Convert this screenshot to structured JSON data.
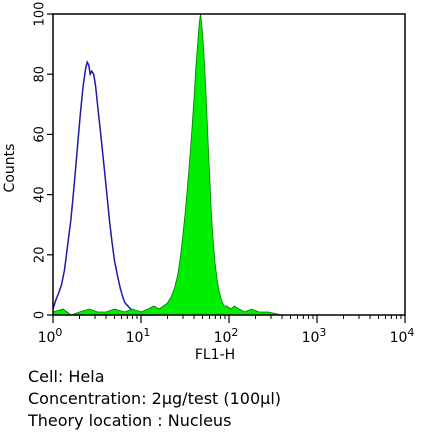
{
  "chart_data": {
    "type": "area",
    "xlabel": "FL1-H",
    "ylabel": "Counts",
    "x_scale": "log",
    "xlim": [
      1,
      10000
    ],
    "ylim": [
      0,
      100
    ],
    "x_ticks": [
      {
        "value": 1,
        "base": "10",
        "exp": "0"
      },
      {
        "value": 10,
        "base": "10",
        "exp": "1"
      },
      {
        "value": 100,
        "base": "10",
        "exp": "2"
      },
      {
        "value": 1000,
        "base": "10",
        "exp": "3"
      },
      {
        "value": 10000,
        "base": "10",
        "exp": "4"
      }
    ],
    "y_ticks": [
      "0",
      "20",
      "40",
      "60",
      "80",
      "100"
    ],
    "series": [
      {
        "style": "outline",
        "color": "#1a1aa8",
        "points": [
          [
            1.0,
            2
          ],
          [
            1.08,
            5
          ],
          [
            1.15,
            7
          ],
          [
            1.25,
            10
          ],
          [
            1.35,
            15
          ],
          [
            1.45,
            22
          ],
          [
            1.6,
            32
          ],
          [
            1.75,
            44
          ],
          [
            1.9,
            56
          ],
          [
            2.05,
            67
          ],
          [
            2.2,
            76
          ],
          [
            2.35,
            82
          ],
          [
            2.45,
            84
          ],
          [
            2.55,
            83
          ],
          [
            2.65,
            80
          ],
          [
            2.75,
            81
          ],
          [
            2.9,
            80
          ],
          [
            3.05,
            76
          ],
          [
            3.2,
            70
          ],
          [
            3.4,
            63
          ],
          [
            3.6,
            56
          ],
          [
            3.85,
            48
          ],
          [
            4.1,
            40
          ],
          [
            4.4,
            31
          ],
          [
            4.7,
            24
          ],
          [
            5.0,
            18
          ],
          [
            5.4,
            13
          ],
          [
            5.8,
            9
          ],
          [
            6.2,
            6
          ],
          [
            6.6,
            4
          ],
          [
            7.1,
            3
          ],
          [
            7.6,
            2
          ],
          [
            8.5,
            1
          ],
          [
            10.0,
            0
          ],
          [
            15.0,
            0
          ]
        ]
      },
      {
        "style": "filled",
        "color": "#00ee00",
        "points": [
          [
            1.0,
            1
          ],
          [
            1.3,
            2
          ],
          [
            1.6,
            0
          ],
          [
            2.0,
            1
          ],
          [
            2.6,
            2
          ],
          [
            3.2,
            1
          ],
          [
            4.0,
            1
          ],
          [
            5.0,
            2
          ],
          [
            6.5,
            1
          ],
          [
            8.0,
            2
          ],
          [
            10.0,
            1
          ],
          [
            12.0,
            2
          ],
          [
            14.0,
            3
          ],
          [
            16.0,
            2
          ],
          [
            18.0,
            3
          ],
          [
            20.0,
            4
          ],
          [
            22.0,
            6
          ],
          [
            24.0,
            9
          ],
          [
            26.0,
            13
          ],
          [
            28.0,
            19
          ],
          [
            30.0,
            27
          ],
          [
            32.0,
            35
          ],
          [
            34.0,
            44
          ],
          [
            36.0,
            53
          ],
          [
            38.0,
            62
          ],
          [
            40.0,
            72
          ],
          [
            42.0,
            82
          ],
          [
            44.0,
            90
          ],
          [
            46.0,
            97
          ],
          [
            47.5,
            100
          ],
          [
            49.0,
            97
          ],
          [
            51.0,
            90
          ],
          [
            53.0,
            82
          ],
          [
            55.0,
            72
          ],
          [
            57.0,
            62
          ],
          [
            59.0,
            52
          ],
          [
            61.0,
            43
          ],
          [
            63.0,
            34
          ],
          [
            66.0,
            25
          ],
          [
            69.0,
            18
          ],
          [
            73.0,
            12
          ],
          [
            77.0,
            8
          ],
          [
            82.0,
            5
          ],
          [
            88.0,
            3
          ],
          [
            95.0,
            3
          ],
          [
            105.0,
            2
          ],
          [
            115.0,
            3
          ],
          [
            130.0,
            2
          ],
          [
            150.0,
            1
          ],
          [
            180.0,
            2
          ],
          [
            220.0,
            1
          ],
          [
            280.0,
            1
          ],
          [
            400.0,
            0
          ],
          [
            600.0,
            0
          ],
          [
            1000.0,
            0
          ]
        ]
      }
    ]
  },
  "caption": {
    "line1": "Cell: Hela",
    "line2": "Concentration: 2µg/test (100µl)",
    "line3": "Theory location : Nucleus"
  }
}
